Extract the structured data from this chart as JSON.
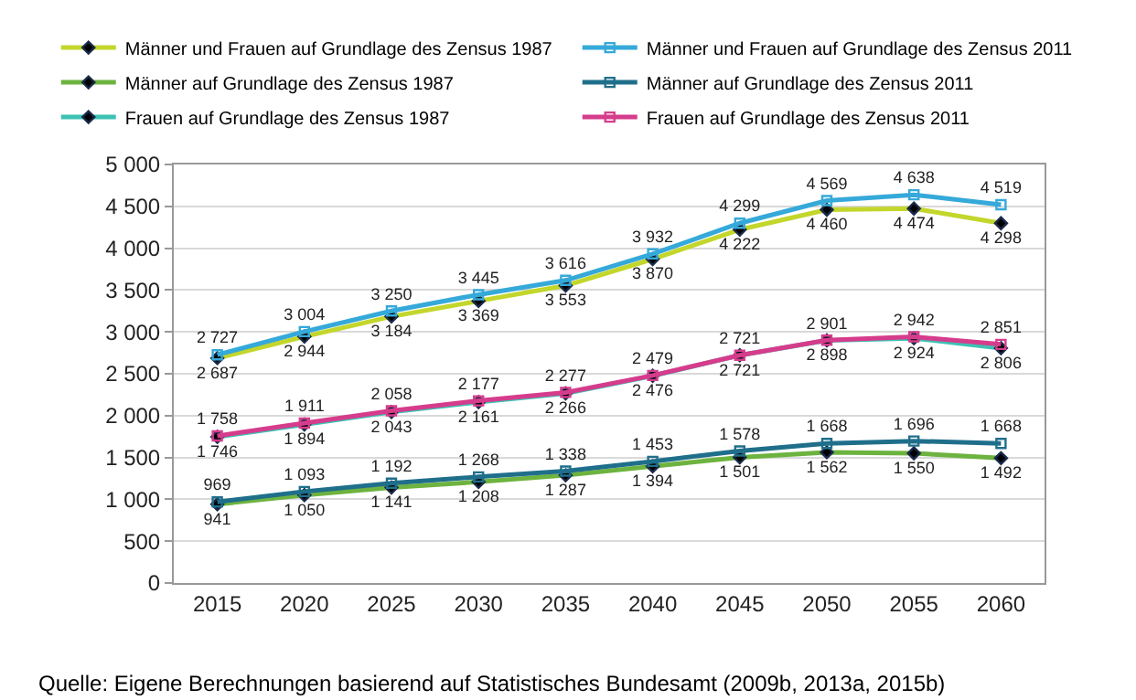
{
  "chart_data": {
    "type": "line",
    "categories": [
      "2015",
      "2020",
      "2025",
      "2030",
      "2035",
      "2040",
      "2045",
      "2050",
      "2055",
      "2060"
    ],
    "series": [
      {
        "name": "Männer und Frauen auf Grundlage des Zensus 1987",
        "color": "#c3d62b",
        "marker": "diamond",
        "values": [
          2687,
          2944,
          3184,
          3369,
          3553,
          3870,
          4222,
          4460,
          4474,
          4298
        ]
      },
      {
        "name": "Männer und Frauen auf Grundlage des Zensus 2011",
        "color": "#35a9d9",
        "marker": "square",
        "values": [
          2727,
          3004,
          3250,
          3445,
          3616,
          3932,
          4299,
          4569,
          4638,
          4519
        ]
      },
      {
        "name": "Männer auf Grundlage des Zensus 1987",
        "color": "#6db33f",
        "marker": "diamond",
        "values": [
          941,
          1050,
          1141,
          1208,
          1287,
          1394,
          1501,
          1562,
          1550,
          1492
        ]
      },
      {
        "name": "Männer auf Grundlage des Zensus 2011",
        "color": "#1f6f8b",
        "marker": "square",
        "values": [
          969,
          1093,
          1192,
          1268,
          1338,
          1453,
          1578,
          1668,
          1696,
          1668
        ]
      },
      {
        "name": "Frauen auf Grundlage des Zensus 1987",
        "color": "#3cc2b4",
        "marker": "diamond",
        "values": [
          1746,
          1894,
          2043,
          2161,
          2266,
          2476,
          2721,
          2898,
          2924,
          2806
        ]
      },
      {
        "name": "Frauen auf Grundlage des Zensus 2011",
        "color": "#d63c8c",
        "marker": "square",
        "values": [
          1758,
          1911,
          2058,
          2177,
          2277,
          2479,
          2721,
          2901,
          2942,
          2851
        ]
      }
    ],
    "ylim": [
      0,
      5000
    ],
    "yticks": [
      {
        "value": 0,
        "label": "0"
      },
      {
        "value": 500,
        "label": "500"
      },
      {
        "value": 1000,
        "label": "1 000"
      },
      {
        "value": 1500,
        "label": "1 500"
      },
      {
        "value": 2000,
        "label": "2 000"
      },
      {
        "value": 2500,
        "label": "2 500"
      },
      {
        "value": 3000,
        "label": "3 000"
      },
      {
        "value": 3500,
        "label": "3 500"
      },
      {
        "value": 4000,
        "label": "4 000"
      },
      {
        "value": 4500,
        "label": "4 500"
      },
      {
        "value": 5000,
        "label": "5 000"
      }
    ],
    "grid": "y",
    "legend": "top",
    "data_labels": true,
    "line_style": "solid",
    "annotations": [
      "Quelle: Eigene Berechnungen basierend auf Statistisches Bundesamt (2009b, 2013a, 2015b)"
    ]
  }
}
